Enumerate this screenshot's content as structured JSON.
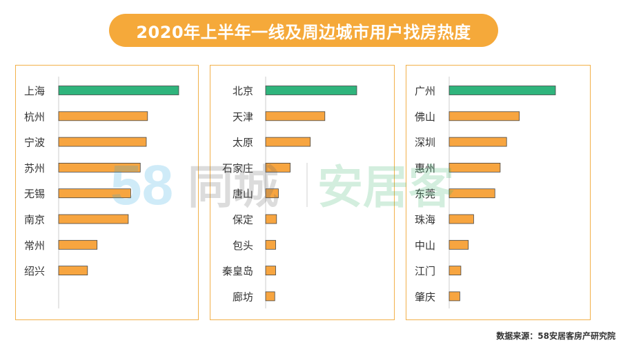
{
  "title": "2020年上半年一线及周边城市用户找房热度",
  "source": "数据来源：58安居客房产研究院",
  "watermark": {
    "digits": "58",
    "text1": "同城",
    "text2": "安居客"
  },
  "colors": {
    "highlight": "#2fb47c",
    "bar": "#f7a540",
    "border": "#f2b048",
    "title_bg": "#f5a93a"
  },
  "chart_data": [
    {
      "type": "bar",
      "orientation": "horizontal",
      "categories": [
        "上海",
        "杭州",
        "宁波",
        "苏州",
        "无锡",
        "南京",
        "常州",
        "绍兴"
      ],
      "values": [
        100,
        74,
        73,
        68,
        60,
        58,
        32,
        24
      ],
      "xlim": [
        0,
        100
      ],
      "highlight_index": 0
    },
    {
      "type": "bar",
      "orientation": "horizontal",
      "categories": [
        "北京",
        "天津",
        "太原",
        "石家庄",
        "唐山",
        "保定",
        "包头",
        "秦皇岛",
        "廊坊"
      ],
      "values": [
        100,
        65,
        49,
        27,
        14,
        12,
        11,
        11,
        10
      ],
      "xlim": [
        0,
        100
      ],
      "highlight_index": 0
    },
    {
      "type": "bar",
      "orientation": "horizontal",
      "categories": [
        "广州",
        "佛山",
        "深圳",
        "惠州",
        "东莞",
        "珠海",
        "中山",
        "江门",
        "肇庆"
      ],
      "values": [
        100,
        66,
        54,
        48,
        43,
        23,
        18,
        11,
        10
      ],
      "xlim": [
        0,
        100
      ],
      "highlight_index": 0
    }
  ]
}
